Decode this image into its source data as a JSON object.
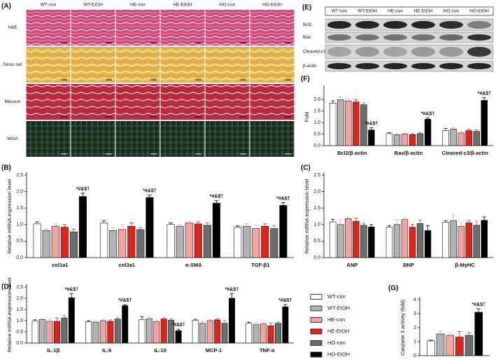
{
  "panel_labels": {
    "A": "(A)",
    "E": "(E)"
  },
  "histology": {
    "columns": [
      "WT-con",
      "WT-EtOH",
      "HE-con",
      "HE-EtOH",
      "HO-con",
      "HO-EtOH"
    ],
    "rows": [
      "H&E",
      "Sirius red",
      "Masson",
      "WGA"
    ]
  },
  "western_blot": {
    "columns": [
      "WT-con",
      "WT-EtOH",
      "HE-con",
      "HE-EtOH",
      "HO-con",
      "HO-EtOH"
    ],
    "rows": [
      "Bcl2",
      "Bax",
      "Cleaved-c3",
      "β-actin"
    ]
  },
  "chart_data": [
    {
      "type": "bar",
      "panel": "(F)",
      "ylabel": "Fold",
      "categories": [
        "Bcl2/β-actin",
        "Bax/β-actin",
        "Cleaved-c3/β-actin"
      ],
      "ylim": [
        0,
        2.5
      ],
      "yticks": [
        {
          "value": 0,
          "label": "0.0"
        },
        {
          "value": 0.5,
          "label": "0.5"
        },
        {
          "value": 1,
          "label": "1.0"
        },
        {
          "value": 1.5,
          "label": "1.5"
        },
        {
          "value": 2,
          "label": "2.0"
        }
      ],
      "series": [
        {
          "color": "#ffffff",
          "values": [
            1.85,
            0.52,
            0.65
          ],
          "errors": [
            0.1,
            0.04,
            0.1
          ]
        },
        {
          "color": "#b3b3b3",
          "values": [
            2.0,
            0.47,
            0.72
          ],
          "errors": [
            0.12,
            0.03,
            0.06
          ]
        },
        {
          "color": "#f4a3a3",
          "values": [
            1.95,
            0.5,
            0.55
          ],
          "errors": [
            0.08,
            0.03,
            0.06
          ]
        },
        {
          "color": "#e2231a",
          "values": [
            1.9,
            0.48,
            0.65
          ],
          "errors": [
            0.1,
            0.04,
            0.07
          ]
        },
        {
          "color": "#6d6d6d",
          "values": [
            1.78,
            0.52,
            0.62
          ],
          "errors": [
            0.08,
            0.05,
            0.06
          ]
        },
        {
          "color": "#000000",
          "values": [
            0.68,
            1.15,
            1.97
          ],
          "errors": [
            0.1,
            0.05,
            0.12
          ],
          "annotations": [
            "*#&$†",
            "*#&$†",
            "*#&$†"
          ]
        }
      ]
    },
    {
      "type": "bar",
      "panel": "(B)",
      "ylabel": "Relative mRNA expression level",
      "categories": [
        "col1a1",
        "col3a1",
        "α-SMA",
        "TGF-β1"
      ],
      "ylim": [
        0,
        2.5
      ],
      "yticks": [
        {
          "value": 0,
          "label": "0.0"
        },
        {
          "value": 0.5,
          "label": "0.5"
        },
        {
          "value": 1,
          "label": "1.0"
        },
        {
          "value": 1.5,
          "label": "1.5"
        },
        {
          "value": 2,
          "label": "2.0"
        },
        {
          "value": 2.5,
          "label": "2.5"
        }
      ],
      "series": [
        {
          "color": "#ffffff",
          "values": [
            1.02,
            1.05,
            1.0,
            0.92
          ],
          "errors": [
            0.06,
            0.07,
            0.05,
            0.04
          ]
        },
        {
          "color": "#b3b3b3",
          "values": [
            0.82,
            0.82,
            0.95,
            0.95
          ],
          "errors": [
            0.05,
            0.08,
            0.05,
            0.08
          ]
        },
        {
          "color": "#f4a3a3",
          "values": [
            0.95,
            0.85,
            1.05,
            0.88
          ],
          "errors": [
            0.07,
            0.15,
            0.05,
            0.1
          ]
        },
        {
          "color": "#e2231a",
          "values": [
            0.92,
            0.95,
            1.02,
            0.95
          ],
          "errors": [
            0.08,
            0.1,
            0.06,
            0.07
          ]
        },
        {
          "color": "#6d6d6d",
          "values": [
            0.78,
            0.85,
            0.98,
            0.88
          ],
          "errors": [
            0.08,
            0.06,
            0.07,
            0.09
          ]
        },
        {
          "color": "#000000",
          "values": [
            1.85,
            1.82,
            1.65,
            1.58
          ],
          "errors": [
            0.1,
            0.07,
            0.07,
            0.08
          ],
          "annotations": [
            "*#&$†",
            "*#&$†",
            "*#&$†",
            "*#&$†"
          ]
        }
      ]
    },
    {
      "type": "bar",
      "panel": "(C)",
      "ylabel": "Relative mRNA expression level",
      "categories": [
        "ANP",
        "BNP",
        "β-MyHC"
      ],
      "ylim": [
        0,
        2.5
      ],
      "yticks": [
        {
          "value": 0,
          "label": "0.0"
        },
        {
          "value": 0.5,
          "label": "0.5"
        },
        {
          "value": 1,
          "label": "1.0"
        },
        {
          "value": 1.5,
          "label": "1.5"
        },
        {
          "value": 2,
          "label": "2.0"
        },
        {
          "value": 2.5,
          "label": "2.5"
        }
      ],
      "series": [
        {
          "color": "#ffffff",
          "values": [
            1.08,
            0.92,
            1.07
          ],
          "errors": [
            0.08,
            0.05,
            0.05
          ]
        },
        {
          "color": "#b3b3b3",
          "values": [
            1.0,
            1.0,
            1.12
          ],
          "errors": [
            0.15,
            0.15,
            0.18
          ]
        },
        {
          "color": "#f4a3a3",
          "values": [
            1.18,
            1.15,
            0.95
          ],
          "errors": [
            0.05,
            0.06,
            0.12
          ]
        },
        {
          "color": "#e2231a",
          "values": [
            1.1,
            0.92,
            1.05
          ],
          "errors": [
            0.1,
            0.08,
            0.07
          ]
        },
        {
          "color": "#6d6d6d",
          "values": [
            0.98,
            1.03,
            0.98
          ],
          "errors": [
            0.06,
            0.1,
            0.12
          ]
        },
        {
          "color": "#000000",
          "values": [
            0.93,
            0.82,
            1.13
          ],
          "errors": [
            0.07,
            0.15,
            0.1
          ]
        }
      ]
    },
    {
      "type": "bar",
      "panel": "(D)",
      "ylabel": "Relative mRNA expression level",
      "categories": [
        "IL-1β",
        "IL-6",
        "IL-10",
        "MCP-1",
        "TNF-α"
      ],
      "ylim": [
        0,
        2.5
      ],
      "yticks": [
        {
          "value": 0,
          "label": "0.0"
        },
        {
          "value": 0.5,
          "label": "0.5"
        },
        {
          "value": 1,
          "label": "1.0"
        },
        {
          "value": 1.5,
          "label": "1.5"
        },
        {
          "value": 2,
          "label": "2.0"
        },
        {
          "value": 2.5,
          "label": "2.5"
        }
      ],
      "series": [
        {
          "color": "#ffffff",
          "values": [
            0.98,
            0.95,
            1.05,
            1.02,
            0.88
          ],
          "errors": [
            0.06,
            0.04,
            0.12,
            0.04,
            0.05
          ]
        },
        {
          "color": "#b3b3b3",
          "values": [
            1.05,
            0.93,
            1.08,
            0.88,
            0.82
          ],
          "errors": [
            0.05,
            0.05,
            0.1,
            0.08,
            0.08
          ]
        },
        {
          "color": "#f4a3a3",
          "values": [
            0.97,
            1.0,
            0.95,
            1.0,
            0.85
          ],
          "errors": [
            0.1,
            0.06,
            0.07,
            0.06,
            0.08
          ]
        },
        {
          "color": "#e2231a",
          "values": [
            0.97,
            0.97,
            1.07,
            1.03,
            0.77
          ],
          "errors": [
            0.15,
            0.06,
            0.05,
            0.05,
            0.12
          ]
        },
        {
          "color": "#6d6d6d",
          "values": [
            1.12,
            1.07,
            1.02,
            0.88,
            0.88
          ],
          "errors": [
            0.1,
            0.06,
            0.05,
            0.12,
            0.06
          ]
        },
        {
          "color": "#000000",
          "values": [
            2.02,
            1.67,
            0.55,
            2.0,
            1.62
          ],
          "errors": [
            0.18,
            0.04,
            0.07,
            0.2,
            0.1
          ],
          "annotations": [
            "*#&$†",
            "*#&$†",
            "*#&$†",
            "*#&$†",
            "*#&$†"
          ]
        }
      ]
    },
    {
      "type": "bar",
      "panel": "(G)",
      "ylabel": "Caspase 3 activity (fold)",
      "categories": [
        null
      ],
      "ylim": [
        0,
        4
      ],
      "yticks": [
        0,
        1,
        2,
        3,
        4
      ],
      "series": [
        {
          "name": "WT-con",
          "color": "#ffffff",
          "values": [
            1.05
          ],
          "errors": [
            0.05
          ]
        },
        {
          "name": "WT-EtOH",
          "color": "#b3b3b3",
          "values": [
            1.55
          ],
          "errors": [
            0.2
          ]
        },
        {
          "name": "HE-con",
          "color": "#f4a3a3",
          "values": [
            1.45
          ],
          "errors": [
            0.15
          ]
        },
        {
          "name": "HE-EtOH",
          "color": "#e2231a",
          "values": [
            1.32
          ],
          "errors": [
            0.4
          ]
        },
        {
          "name": "HO-con",
          "color": "#6d6d6d",
          "values": [
            1.45
          ],
          "errors": [
            0.2
          ]
        },
        {
          "name": "HO-EtOH",
          "color": "#000000",
          "values": [
            3.1
          ],
          "errors": [
            0.25
          ],
          "annotations": [
            "*#&$†"
          ]
        }
      ]
    }
  ]
}
